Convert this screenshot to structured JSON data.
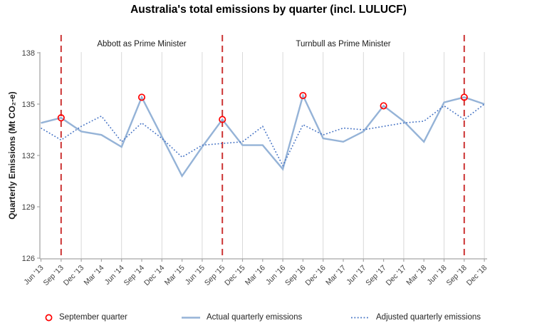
{
  "chart_data": {
    "type": "line",
    "title": "Australia's total emissions by quarter (incl. LULUCF)",
    "ylabel": "Quarterly Emissions (Mt CO₂-e)",
    "ylim": [
      126,
      138
    ],
    "yticks": [
      126,
      129,
      132,
      135,
      138
    ],
    "grid": "vertical gridlines at Jun and Dec quarters only",
    "legend_position": "bottom",
    "categories": [
      "Jun '13",
      "Sep '13",
      "Dec '13",
      "Mar '14",
      "Jun '14",
      "Sep '14",
      "Dec '14",
      "Mar '15",
      "Jun '15",
      "Sep '15",
      "Dec '15",
      "Mar '16",
      "Jun '16",
      "Sep '16",
      "Dec '16",
      "Mar '17",
      "Jun '17",
      "Sep '17",
      "Dec '17",
      "Mar '18",
      "Jun '18",
      "Sep '18",
      "Dec '18"
    ],
    "series": [
      {
        "name": "Actual quarterly emissions",
        "style": "solid",
        "color": "#95B3D7",
        "values": [
          133.9,
          134.2,
          133.4,
          133.2,
          132.5,
          135.4,
          133.1,
          130.8,
          132.5,
          134.1,
          132.6,
          132.6,
          131.2,
          135.5,
          133.0,
          132.8,
          133.4,
          134.9,
          134.0,
          132.8,
          135.1,
          135.4,
          135.0
        ]
      },
      {
        "name": "Adjusted quarterly emissions",
        "style": "dotted",
        "color": "#4472C4",
        "values": [
          133.6,
          132.9,
          133.7,
          134.3,
          132.8,
          133.9,
          133.0,
          131.9,
          132.6,
          132.7,
          132.8,
          133.7,
          131.4,
          133.8,
          133.2,
          133.6,
          133.5,
          133.7,
          133.9,
          134.0,
          134.9,
          134.1,
          135.0
        ]
      }
    ],
    "september_markers": {
      "label": "September quarter",
      "color": "#FF0000",
      "quarters": [
        "Sep '13",
        "Sep '14",
        "Sep '15",
        "Sep '16",
        "Sep '17",
        "Sep '18"
      ]
    },
    "divider_lines": {
      "color": "#CC3333",
      "quarters": [
        "Sep '13",
        "Sep '15",
        "Sep '18"
      ]
    },
    "annotations": {
      "abbott": "Abbott as Prime Minister",
      "turnbull": "Turnbull as Prime Minister"
    }
  },
  "legend": {
    "september": "September quarter",
    "actual": "Actual quarterly emissions",
    "adjusted": "Adjusted quarterly emissions"
  },
  "colors": {
    "actual": "#95B3D7",
    "adjusted": "#4472C4",
    "marker": "#FF0000",
    "divider": "#CC3333",
    "gridline": "#D9D9D9",
    "axis": "#A6A6A6",
    "tick_text": "#404040"
  }
}
